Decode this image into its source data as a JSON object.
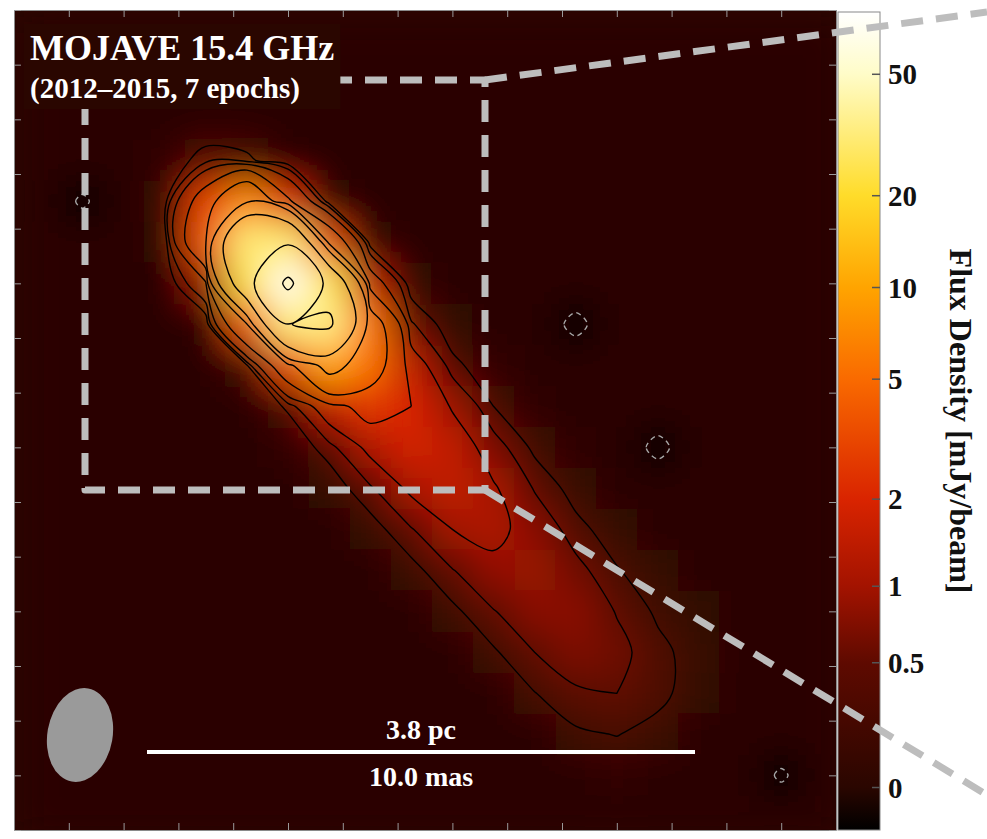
{
  "chart_data": {
    "type": "heatmap",
    "title": "MOJAVE 15.4 GHz",
    "subtitle": "(2012–2015, 7 epochs)",
    "x": [
      -4.5,
      -3.75,
      -3,
      -2.25,
      -1.5,
      -0.75,
      0,
      0.75,
      1.5,
      2.25,
      3,
      3.75,
      4.5,
      5.25,
      6,
      6.75,
      7.5,
      8.25,
      9,
      9.75
    ],
    "y": [
      4.5,
      3.75,
      3,
      2.25,
      1.5,
      0.75,
      0,
      -0.75,
      -1.5,
      -2.25,
      -3,
      -3.75,
      -4.5,
      -5.25,
      -6,
      -6.75,
      -7.5,
      -8.25,
      -9,
      -9.75
    ],
    "z": [
      [
        0,
        0,
        0,
        0,
        0,
        0,
        0,
        0,
        0,
        0,
        0,
        0,
        0,
        0,
        0,
        0,
        0,
        0,
        0,
        0
      ],
      [
        0,
        0,
        0,
        0,
        0,
        0,
        0,
        0,
        0,
        0,
        0,
        0,
        0,
        0,
        0,
        0,
        0,
        0,
        0,
        0
      ],
      [
        0,
        0,
        0,
        0,
        0,
        0,
        0,
        0,
        0,
        0,
        0,
        0,
        0,
        0,
        0,
        0,
        0,
        0,
        0,
        0
      ],
      [
        0,
        0,
        0,
        0.05,
        0.38,
        0.31,
        0.03,
        0,
        0,
        0,
        0,
        0,
        0,
        0,
        0,
        0,
        0,
        0,
        0,
        0
      ],
      [
        0,
        -0.3,
        0,
        0.13,
        2.9,
        7.4,
        2.2,
        0.08,
        0,
        0,
        0,
        0,
        0,
        0,
        0,
        0,
        0,
        0,
        0,
        0
      ],
      [
        0,
        0,
        0,
        0.06,
        3.9,
        31.5,
        29.5,
        3.2,
        0.12,
        0,
        0,
        0,
        0,
        0,
        0,
        0,
        0,
        0,
        0,
        0
      ],
      [
        0,
        0,
        0,
        0,
        0.92,
        23.7,
        70,
        25.6,
        1.45,
        0.08,
        0,
        0,
        0,
        0,
        0,
        0,
        0,
        0,
        0,
        0
      ],
      [
        0,
        0,
        0,
        0,
        0.04,
        3.8,
        31.7,
        34.5,
        5.6,
        0.54,
        0.07,
        0,
        0,
        -0.35,
        0,
        0,
        0,
        0,
        0,
        0
      ],
      [
        0,
        0,
        0,
        0,
        0,
        0.22,
        3.2,
        9.8,
        5.5,
        1.41,
        0.33,
        0.05,
        0,
        0,
        0,
        0,
        0,
        0,
        0,
        0
      ],
      [
        0,
        0,
        0,
        0,
        0,
        0.02,
        0.29,
        1.49,
        2.58,
        2.0,
        0.92,
        0.25,
        0.04,
        0,
        0,
        0,
        0,
        0,
        0,
        0
      ],
      [
        0,
        0,
        0,
        0,
        0,
        0,
        0.05,
        0.36,
        1.18,
        1.84,
        1.48,
        0.66,
        0.18,
        0.03,
        0,
        -0.35,
        0,
        0,
        0,
        0
      ],
      [
        0,
        0,
        0,
        0,
        0,
        0,
        0,
        0.08,
        0.44,
        1.13,
        1.47,
        1.07,
        0.47,
        0.13,
        0.02,
        0,
        0,
        0,
        0,
        0
      ],
      [
        0,
        0,
        0,
        0,
        0,
        0,
        0,
        0,
        0.12,
        0.47,
        1.0,
        1.15,
        0.78,
        0.34,
        0.1,
        0,
        0,
        0,
        0,
        0
      ],
      [
        0,
        0,
        0,
        0,
        0,
        0,
        0,
        0,
        0,
        0.15,
        0.48,
        0.86,
        0.91,
        0.61,
        0.27,
        0.08,
        0,
        0,
        0,
        0
      ],
      [
        0,
        0,
        0,
        0,
        0,
        0,
        0,
        0,
        0,
        0,
        0.18,
        0.48,
        0.78,
        0.79,
        0.48,
        0.2,
        0.06,
        0,
        0,
        0
      ],
      [
        0,
        0,
        0,
        0,
        0,
        0,
        0,
        0,
        0,
        0,
        0,
        0.21,
        0.5,
        0.7,
        0.6,
        0.33,
        0.12,
        0.02,
        0,
        0
      ],
      [
        0,
        0,
        0,
        0,
        0,
        0,
        0,
        0,
        0,
        0,
        0,
        0,
        0.24,
        0.45,
        0.5,
        0.33,
        0.1,
        0,
        0,
        0
      ],
      [
        0,
        0,
        0,
        0,
        0,
        0,
        0,
        0,
        0,
        0,
        0,
        0,
        0,
        0.2,
        0.26,
        0.15,
        0,
        0,
        0,
        0
      ],
      [
        0,
        0,
        0,
        0,
        0,
        0,
        0,
        0,
        0,
        0,
        0,
        0,
        0,
        0,
        0.05,
        0,
        0,
        0,
        -0.3,
        0
      ],
      [
        0,
        0,
        0,
        0,
        0,
        0,
        0,
        0,
        0,
        0,
        0,
        0,
        0,
        0,
        0,
        0,
        0,
        0,
        0,
        0
      ]
    ],
    "xlim": [
      -5,
      10
    ],
    "ylim": [
      -10,
      5
    ],
    "xticks": [
      -5,
      -4,
      -3,
      -2,
      -1,
      0,
      1,
      2,
      3,
      4,
      5,
      6,
      7,
      8,
      9,
      10
    ],
    "yticks": [
      -10,
      -9,
      -8,
      -7,
      -6,
      -5,
      -4,
      -3,
      -2,
      -1,
      0,
      1,
      2,
      3,
      4,
      5
    ],
    "tick_labels": false,
    "contour_levels": [
      -0.25,
      0.25,
      0.5,
      1,
      2,
      4,
      8,
      16,
      32,
      64
    ],
    "colorbar": {
      "label": "Flux Density [mJy/beam]",
      "zlim": [
        -0.15,
        80
      ],
      "ticks": [
        0,
        0.5,
        1,
        2,
        5,
        10,
        20,
        50
      ]
    },
    "beam": {
      "major": 1.73,
      "minor": 1.19,
      "pa": -10
    },
    "scale_bar": {
      "length": 10.0,
      "labels": [
        "3.8 pc",
        "10.0 mas"
      ]
    }
  }
}
